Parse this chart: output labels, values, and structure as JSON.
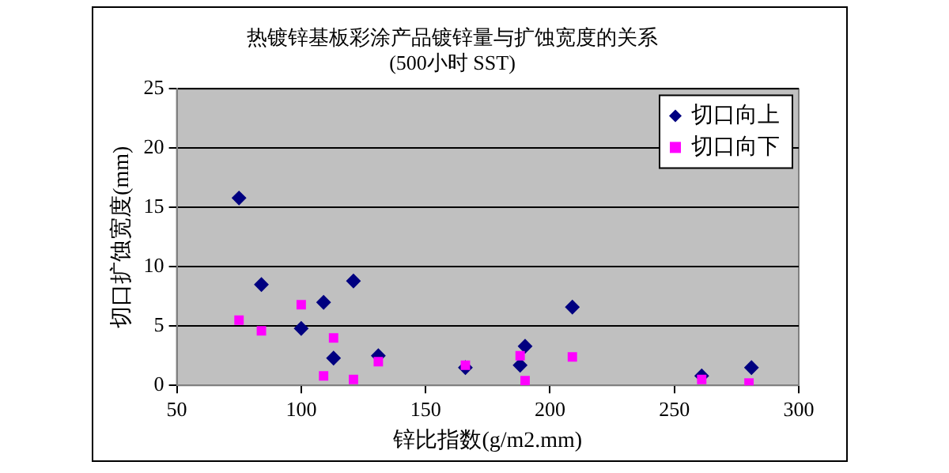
{
  "chart_data": {
    "type": "scatter",
    "title": "热镀锌基板彩涂产品镀锌量与扩蚀宽度的关系",
    "subtitle": "(500小时 SST)",
    "xlabel": "锌比指数(g/m2.mm)",
    "ylabel": "切口扩蚀宽度(mm)",
    "xlim": [
      50,
      300
    ],
    "xticks": [
      50,
      100,
      150,
      200,
      250,
      300
    ],
    "ylim": [
      0,
      25
    ],
    "yticks": [
      0,
      5,
      10,
      15,
      20,
      25
    ],
    "grid": "y",
    "legend": "top right",
    "series": [
      {
        "name": "切口向上",
        "color": "#000080",
        "marker": "diamond",
        "x": [
          75,
          84,
          100,
          109,
          113,
          121,
          131,
          166,
          188,
          190,
          209,
          261,
          281
        ],
        "values": [
          15.8,
          8.5,
          4.8,
          7,
          2.3,
          8.8,
          2.5,
          1.5,
          1.7,
          3.3,
          6.6,
          0.8,
          1.5
        ]
      },
      {
        "name": "切口向下",
        "color": "#ff00ff",
        "marker": "square",
        "x": [
          75,
          84,
          100,
          109,
          113,
          121,
          131,
          166,
          188,
          190,
          209,
          261,
          280
        ],
        "values": [
          5.5,
          4.6,
          6.8,
          0.8,
          4,
          0.5,
          2,
          1.7,
          2.5,
          0.4,
          2.4,
          0.5,
          0.2
        ]
      }
    ]
  }
}
